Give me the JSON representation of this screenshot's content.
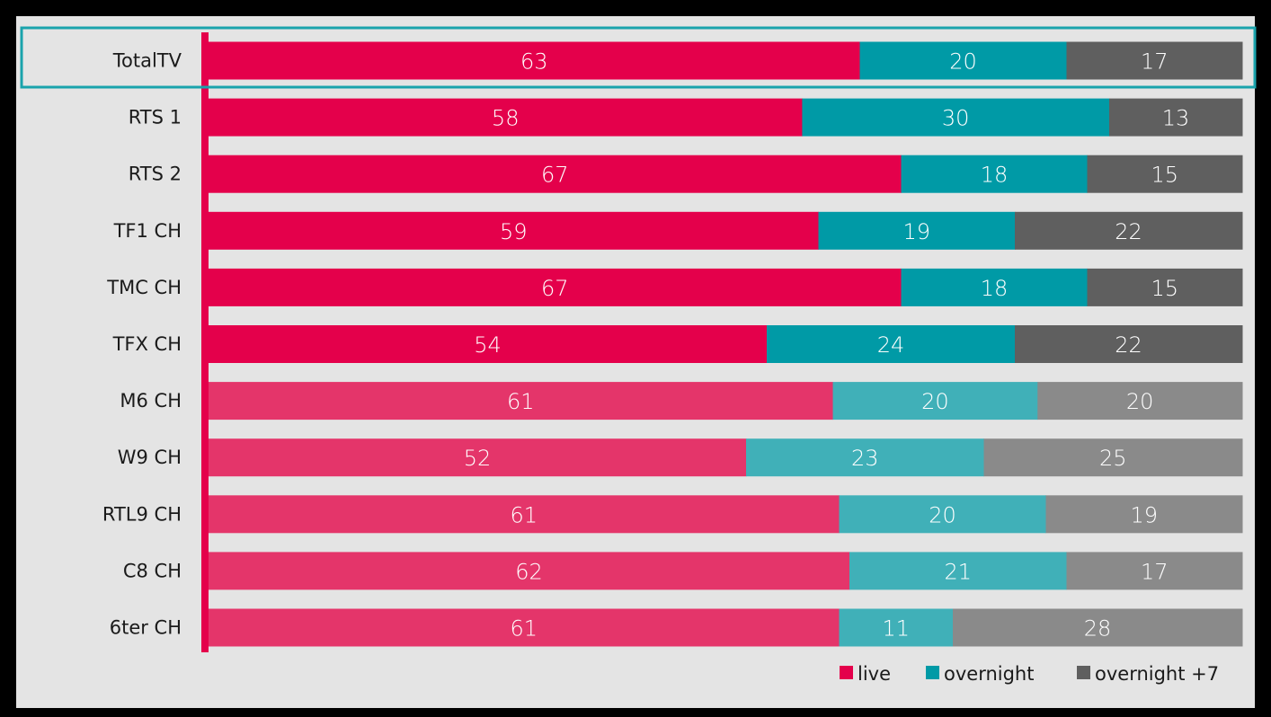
{
  "chart_data": {
    "type": "bar",
    "orientation": "horizontal",
    "stacked": true,
    "percent": true,
    "title": "",
    "xlabel": "",
    "ylabel": "",
    "xlim": [
      0,
      100
    ],
    "grid": false,
    "legend_position": "bottom-right",
    "highlighted_category": "TotalTV",
    "categories": [
      "TotalTV",
      "RTS 1",
      "RTS 2",
      "TF1 CH",
      "TMC CH",
      "TFX CH",
      "M6 CH",
      "W9 CH",
      "RTL9 CH",
      "C8 CH",
      "6ter CH"
    ],
    "series": [
      {
        "name": "live",
        "values": [
          63,
          58,
          67,
          59,
          67,
          54,
          61,
          52,
          61,
          62,
          61
        ]
      },
      {
        "name": "overnight",
        "values": [
          20,
          30,
          18,
          19,
          18,
          24,
          20,
          23,
          20,
          21,
          11
        ]
      },
      {
        "name": "overnight +7",
        "values": [
          17,
          13,
          15,
          22,
          15,
          22,
          20,
          25,
          19,
          17,
          28
        ]
      }
    ],
    "colors": {
      "live": "#e4004b",
      "overnight": "#009aa6",
      "overnight_plus7": "#5f5f5f",
      "live_light": "#e4356a",
      "overnight_light": "#40b0b8",
      "overnight_plus7_light": "#8a8a8a",
      "highlight_border": "#1aa3ac",
      "axis": "#e4004b"
    }
  }
}
